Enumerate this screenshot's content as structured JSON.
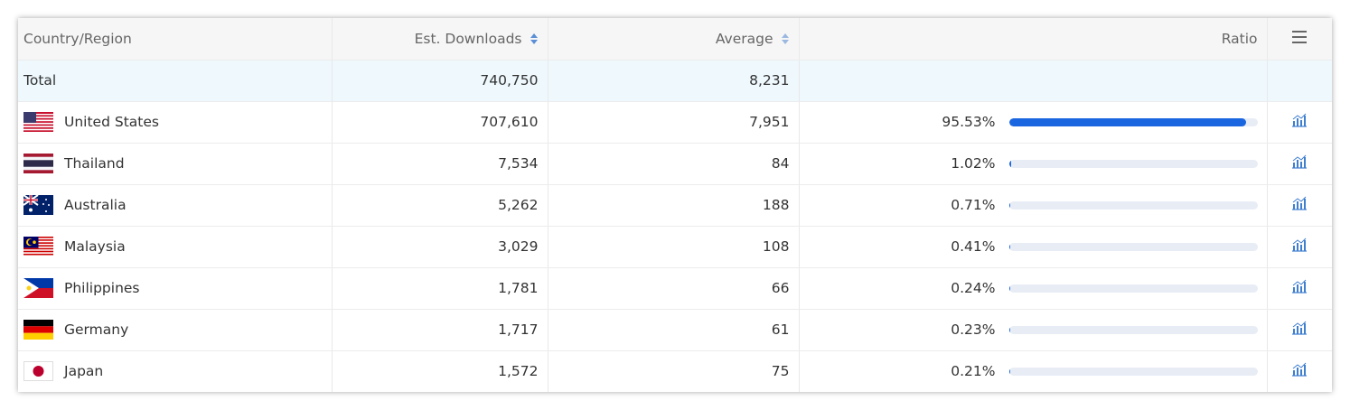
{
  "table": {
    "columns": [
      "Country/Region",
      "Est. Downloads",
      "Average",
      "Ratio"
    ],
    "total": {
      "label": "Total",
      "downloads": "740,750",
      "average": "8,231"
    },
    "rows": [
      {
        "country": "United States",
        "downloads": "707,610",
        "average": "7,951",
        "ratio": {
          "value": 95.53,
          "label": "95.53%"
        }
      },
      {
        "country": "Thailand",
        "downloads": "7,534",
        "average": "84",
        "ratio": {
          "value": 1.02,
          "label": "1.02%"
        }
      },
      {
        "country": "Australia",
        "downloads": "5,262",
        "average": "188",
        "ratio": {
          "value": 0.71,
          "label": "0.71%"
        }
      },
      {
        "country": "Malaysia",
        "downloads": "3,029",
        "average": "108",
        "ratio": {
          "value": 0.41,
          "label": "0.41%"
        }
      },
      {
        "country": "Philippines",
        "downloads": "1,781",
        "average": "66",
        "ratio": {
          "value": 0.24,
          "label": "0.24%"
        }
      },
      {
        "country": "Germany",
        "downloads": "1,717",
        "average": "61",
        "ratio": {
          "value": 0.23,
          "label": "0.23%"
        }
      },
      {
        "country": "Japan",
        "downloads": "1,572",
        "average": "75",
        "ratio": {
          "value": 0.21,
          "label": "0.21%"
        }
      }
    ]
  }
}
